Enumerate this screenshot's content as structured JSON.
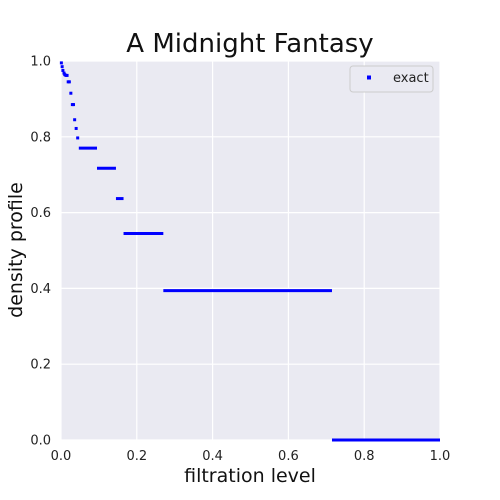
{
  "chart_data": {
    "type": "scatter",
    "title": "A Midnight Fantasy",
    "xlabel": "filtration level",
    "ylabel": "density profile",
    "xlim": [
      0.0,
      1.0
    ],
    "ylim": [
      0.0,
      1.0
    ],
    "x_ticks": [
      "0.0",
      "0.2",
      "0.4",
      "0.6",
      "0.8",
      "1.0"
    ],
    "y_ticks": [
      "0.0",
      "0.2",
      "0.4",
      "0.6",
      "0.8",
      "1.0"
    ],
    "grid": true,
    "legend_position": "top-right",
    "series": [
      {
        "name": "exact",
        "color": "#0000ff",
        "points": [
          [
            0.001,
            0.995
          ],
          [
            0.003,
            0.985
          ],
          [
            0.005,
            0.975
          ],
          [
            0.008,
            0.968
          ],
          [
            0.01,
            0.964
          ],
          [
            0.013,
            0.962
          ],
          [
            0.016,
            0.962
          ],
          [
            0.019,
            0.945
          ],
          [
            0.022,
            0.945
          ],
          [
            0.026,
            0.915
          ],
          [
            0.03,
            0.885
          ],
          [
            0.033,
            0.885
          ],
          [
            0.036,
            0.845
          ],
          [
            0.04,
            0.822
          ],
          [
            0.044,
            0.797
          ]
        ],
        "segments": [
          {
            "x0": 0.047,
            "x1": 0.095,
            "y": 0.77
          },
          {
            "x0": 0.095,
            "x1": 0.145,
            "y": 0.717
          },
          {
            "x0": 0.145,
            "x1": 0.165,
            "y": 0.637
          },
          {
            "x0": 0.165,
            "x1": 0.27,
            "y": 0.545
          },
          {
            "x0": 0.27,
            "x1": 0.715,
            "y": 0.394
          },
          {
            "x0": 0.715,
            "x1": 1.0,
            "y": 0.0
          }
        ]
      }
    ]
  }
}
